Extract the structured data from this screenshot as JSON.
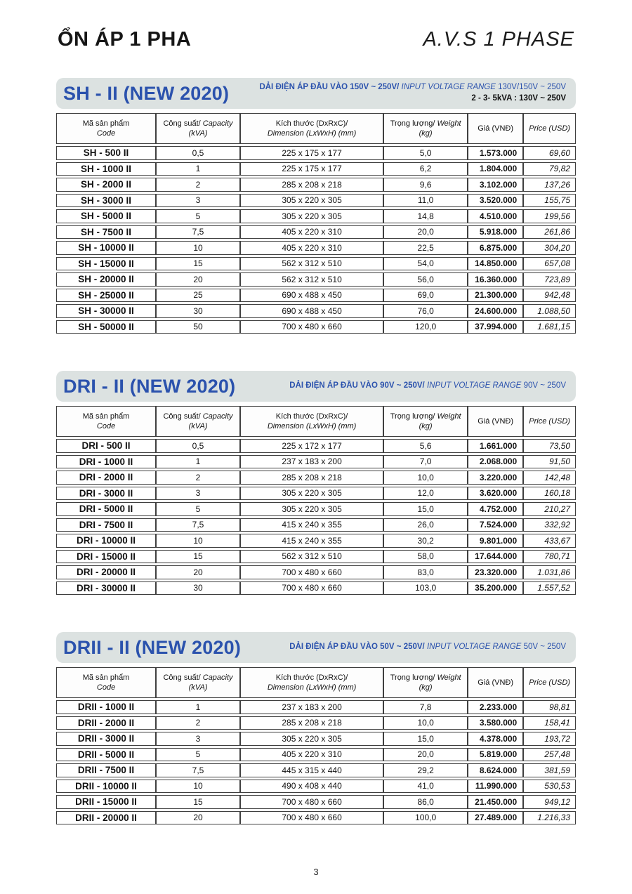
{
  "page": {
    "title_vi": "ỔN ÁP 1 PHA",
    "title_en": "A.V.S 1 PHASE",
    "page_number": "3"
  },
  "colors": {
    "accent_blue": "#2b52ad",
    "banner_bg": "#dce2e1",
    "table_border": "#3f3f3f"
  },
  "table_headers": {
    "code_vi": "Mã sản phẩm",
    "code_en": "Code",
    "capacity_vi": "Công suất/",
    "capacity_en": "Capacity",
    "capacity_unit": "(kVA)",
    "dimension_vi": "Kích thước (DxRxC)/",
    "dimension_en": "Dimension (LxWxH) (mm)",
    "weight_vi": "Trọng lượng/",
    "weight_en": "Weight (kg)",
    "price_vnd": "Giá (VNĐ)",
    "price_usd": "Price (USD)"
  },
  "sections": [
    {
      "title": "SH - II (NEW 2020)",
      "range_vi": "DẢI ĐIỆN ÁP ĐẦU VÀO 150V ~ 250V/",
      "range_en": "INPUT VOLTAGE RANGE",
      "range_val": "130V/150V ~ 250V",
      "range_note": "2 - 3- 5kVA : 130V ~ 250V",
      "rows": [
        [
          "SH - 500 II",
          "0,5",
          "225 x 175 x 177",
          "5,0",
          "1.573.000",
          "69,60"
        ],
        [
          "SH - 1000 II",
          "1",
          "225 x 175 x 177",
          "6,2",
          "1.804.000",
          "79,82"
        ],
        [
          "SH - 2000 II",
          "2",
          "285 x 208 x 218",
          "9,6",
          "3.102.000",
          "137,26"
        ],
        [
          "SH - 3000 II",
          "3",
          "305 x 220 x 305",
          "11,0",
          "3.520.000",
          "155,75"
        ],
        [
          "SH - 5000 II",
          "5",
          "305 x 220 x 305",
          "14,8",
          "4.510.000",
          "199,56"
        ],
        [
          "SH - 7500 II",
          "7,5",
          "405 x 220 x 310",
          "20,0",
          "5.918.000",
          "261,86"
        ],
        [
          "SH - 10000 II",
          "10",
          "405 x 220 x 310",
          "22,5",
          "6.875.000",
          "304,20"
        ],
        [
          "SH - 15000 II",
          "15",
          "562 x 312 x 510",
          "54,0",
          "14.850.000",
          "657,08"
        ],
        [
          "SH - 20000 II",
          "20",
          "562 x 312 x 510",
          "56,0",
          "16.360.000",
          "723,89"
        ],
        [
          "SH - 25000 II",
          "25",
          "690 x 488 x 450",
          "69,0",
          "21.300.000",
          "942,48"
        ],
        [
          "SH - 30000 II",
          "30",
          "690 x 488 x 450",
          "76,0",
          "24.600.000",
          "1.088,50"
        ],
        [
          "SH - 50000 II",
          "50",
          "700 x 480 x 660",
          "120,0",
          "37.994.000",
          "1.681,15"
        ]
      ]
    },
    {
      "title": "DRI - II (NEW 2020)",
      "range_vi": "DẢI ĐIỆN ÁP ĐẦU VÀO 90V ~ 250V/",
      "range_en": "INPUT VOLTAGE RANGE",
      "range_val": "90V ~ 250V",
      "rows": [
        [
          "DRI - 500 II",
          "0,5",
          "225 x 172 x 177",
          "5,6",
          "1.661.000",
          "73,50"
        ],
        [
          "DRI - 1000 II",
          "1",
          "237 x 183 x 200",
          "7,0",
          "2.068.000",
          "91,50"
        ],
        [
          "DRI - 2000 II",
          "2",
          "285 x 208 x 218",
          "10,0",
          "3.220.000",
          "142,48"
        ],
        [
          "DRI - 3000 II",
          "3",
          "305 x 220 x 305",
          "12,0",
          "3.620.000",
          "160,18"
        ],
        [
          "DRI - 5000 II",
          "5",
          "305 x 220 x 305",
          "15,0",
          "4.752.000",
          "210,27"
        ],
        [
          "DRI - 7500 II",
          "7,5",
          "415 x 240 x 355",
          "26,0",
          "7.524.000",
          "332,92"
        ],
        [
          "DRI - 10000 II",
          "10",
          "415 x 240 x 355",
          "30,2",
          "9.801.000",
          "433,67"
        ],
        [
          "DRI - 15000 II",
          "15",
          "562 x 312 x 510",
          "58,0",
          "17.644.000",
          "780,71"
        ],
        [
          "DRI - 20000 II",
          "20",
          "700 x 480 x 660",
          "83,0",
          "23.320.000",
          "1.031,86"
        ],
        [
          "DRI - 30000 II",
          "30",
          "700 x 480 x 660",
          "103,0",
          "35.200.000",
          "1.557,52"
        ]
      ]
    },
    {
      "title": "DRII - II (NEW 2020)",
      "range_vi": "DẢI ĐIỆN ÁP ĐẦU VÀO 50V ~ 250V/",
      "range_en": "INPUT VOLTAGE RANGE",
      "range_val": "50V ~ 250V",
      "rows": [
        [
          "DRII - 1000 II",
          "1",
          "237 x 183 x 200",
          "7,8",
          "2.233.000",
          "98,81"
        ],
        [
          "DRII - 2000 II",
          "2",
          "285 x 208 x 218",
          "10,0",
          "3.580.000",
          "158,41"
        ],
        [
          "DRII - 3000 II",
          "3",
          "305 x 220 x 305",
          "15,0",
          "4.378.000",
          "193,72"
        ],
        [
          "DRII - 5000 II",
          "5",
          "405 x 220 x 310",
          "20,0",
          "5.819.000",
          "257,48"
        ],
        [
          "DRII - 7500 II",
          "7,5",
          "445 x 315 x 440",
          "29,2",
          "8.624.000",
          "381,59"
        ],
        [
          "DRII - 10000 II",
          "10",
          "490 x 408 x 440",
          "41,0",
          "11.990.000",
          "530,53"
        ],
        [
          "DRII - 15000 II",
          "15",
          "700 x 480 x 660",
          "86,0",
          "21.450.000",
          "949,12"
        ],
        [
          "DRII  - 20000 II",
          "20",
          "700 x 480 x 660",
          "100,0",
          "27.489.000",
          "1.216,33"
        ]
      ]
    }
  ]
}
